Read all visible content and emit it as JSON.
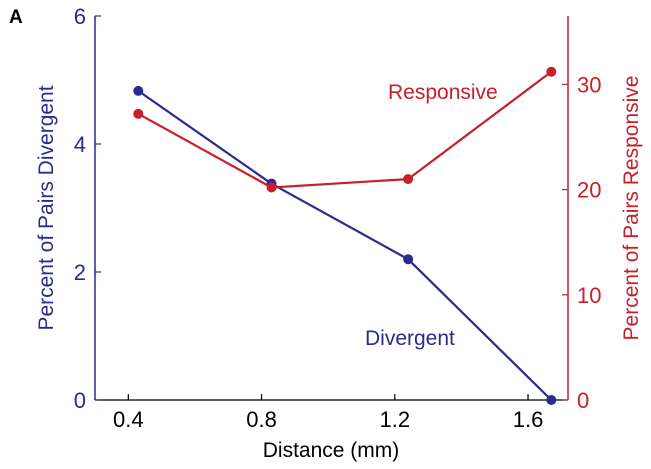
{
  "panel_label": "A",
  "colors": {
    "left": "#2b2a8f",
    "right": "#c8202a",
    "axis": "#000000"
  },
  "chart_data": {
    "type": "line",
    "xlabel": "Distance (mm)",
    "xlim": [
      0.3,
      1.72
    ],
    "xticks": [
      0.4,
      0.8,
      1.2,
      1.6
    ],
    "xtick_labels": [
      "0.4",
      "0.8",
      "1.2",
      "1.6"
    ],
    "y_left": {
      "label": "Percent of Pairs Divergent",
      "lim": [
        0,
        6
      ],
      "ticks": [
        0,
        2,
        4,
        6
      ],
      "tick_labels": [
        "0",
        "2",
        "4",
        "6"
      ]
    },
    "y_right": {
      "label": "Percent of Pairs Responsive",
      "lim": [
        0,
        36.5
      ],
      "ticks": [
        0,
        10,
        20,
        30
      ],
      "tick_labels": [
        "0",
        "10",
        "20",
        "30"
      ]
    },
    "series": [
      {
        "name": "Divergent",
        "axis": "left",
        "color": "#2b2a8f",
        "x": [
          0.43,
          0.83,
          1.24,
          1.67
        ],
        "y": [
          4.83,
          3.38,
          2.2,
          0.0
        ]
      },
      {
        "name": "Responsive",
        "axis": "right",
        "color": "#c8202a",
        "x": [
          0.43,
          0.83,
          1.24,
          1.67
        ],
        "y": [
          27.2,
          20.2,
          21.0,
          31.2
        ]
      }
    ],
    "annotations": [
      {
        "text": "Responsive",
        "series": "Responsive"
      },
      {
        "text": "Divergent",
        "series": "Divergent"
      }
    ]
  }
}
